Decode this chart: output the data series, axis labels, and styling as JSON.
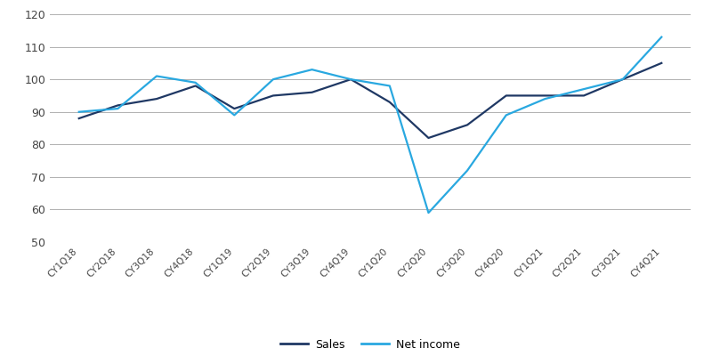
{
  "quarters": [
    "CY1Q18",
    "CY2Q18",
    "CY3Q18",
    "CY4Q18",
    "CY1Q19",
    "CY2Q19",
    "CY3Q19",
    "CY4Q19",
    "CY1Q20",
    "CY2Q20",
    "CY3Q20",
    "CY4Q20",
    "CY1Q21",
    "CY2Q21",
    "CY3Q21",
    "CY4Q21"
  ],
  "sales": [
    88,
    92,
    94,
    98,
    91,
    95,
    96,
    100,
    93,
    82,
    86,
    95,
    95,
    95,
    100,
    105
  ],
  "net_income": [
    90,
    91,
    101,
    99,
    89,
    100,
    103,
    100,
    98,
    59,
    72,
    89,
    94,
    97,
    100,
    113
  ],
  "sales_color": "#1f3864",
  "net_income_color": "#29a8e0",
  "background_color": "#ffffff",
  "grid_color": "#b0b0b0",
  "ylim": [
    50,
    120
  ],
  "yticks": [
    50,
    60,
    70,
    80,
    90,
    100,
    110,
    120
  ],
  "sales_label": "Sales",
  "net_income_label": "Net income",
  "linewidth": 1.6,
  "figsize": [
    8.0,
    4.0
  ],
  "dpi": 100
}
